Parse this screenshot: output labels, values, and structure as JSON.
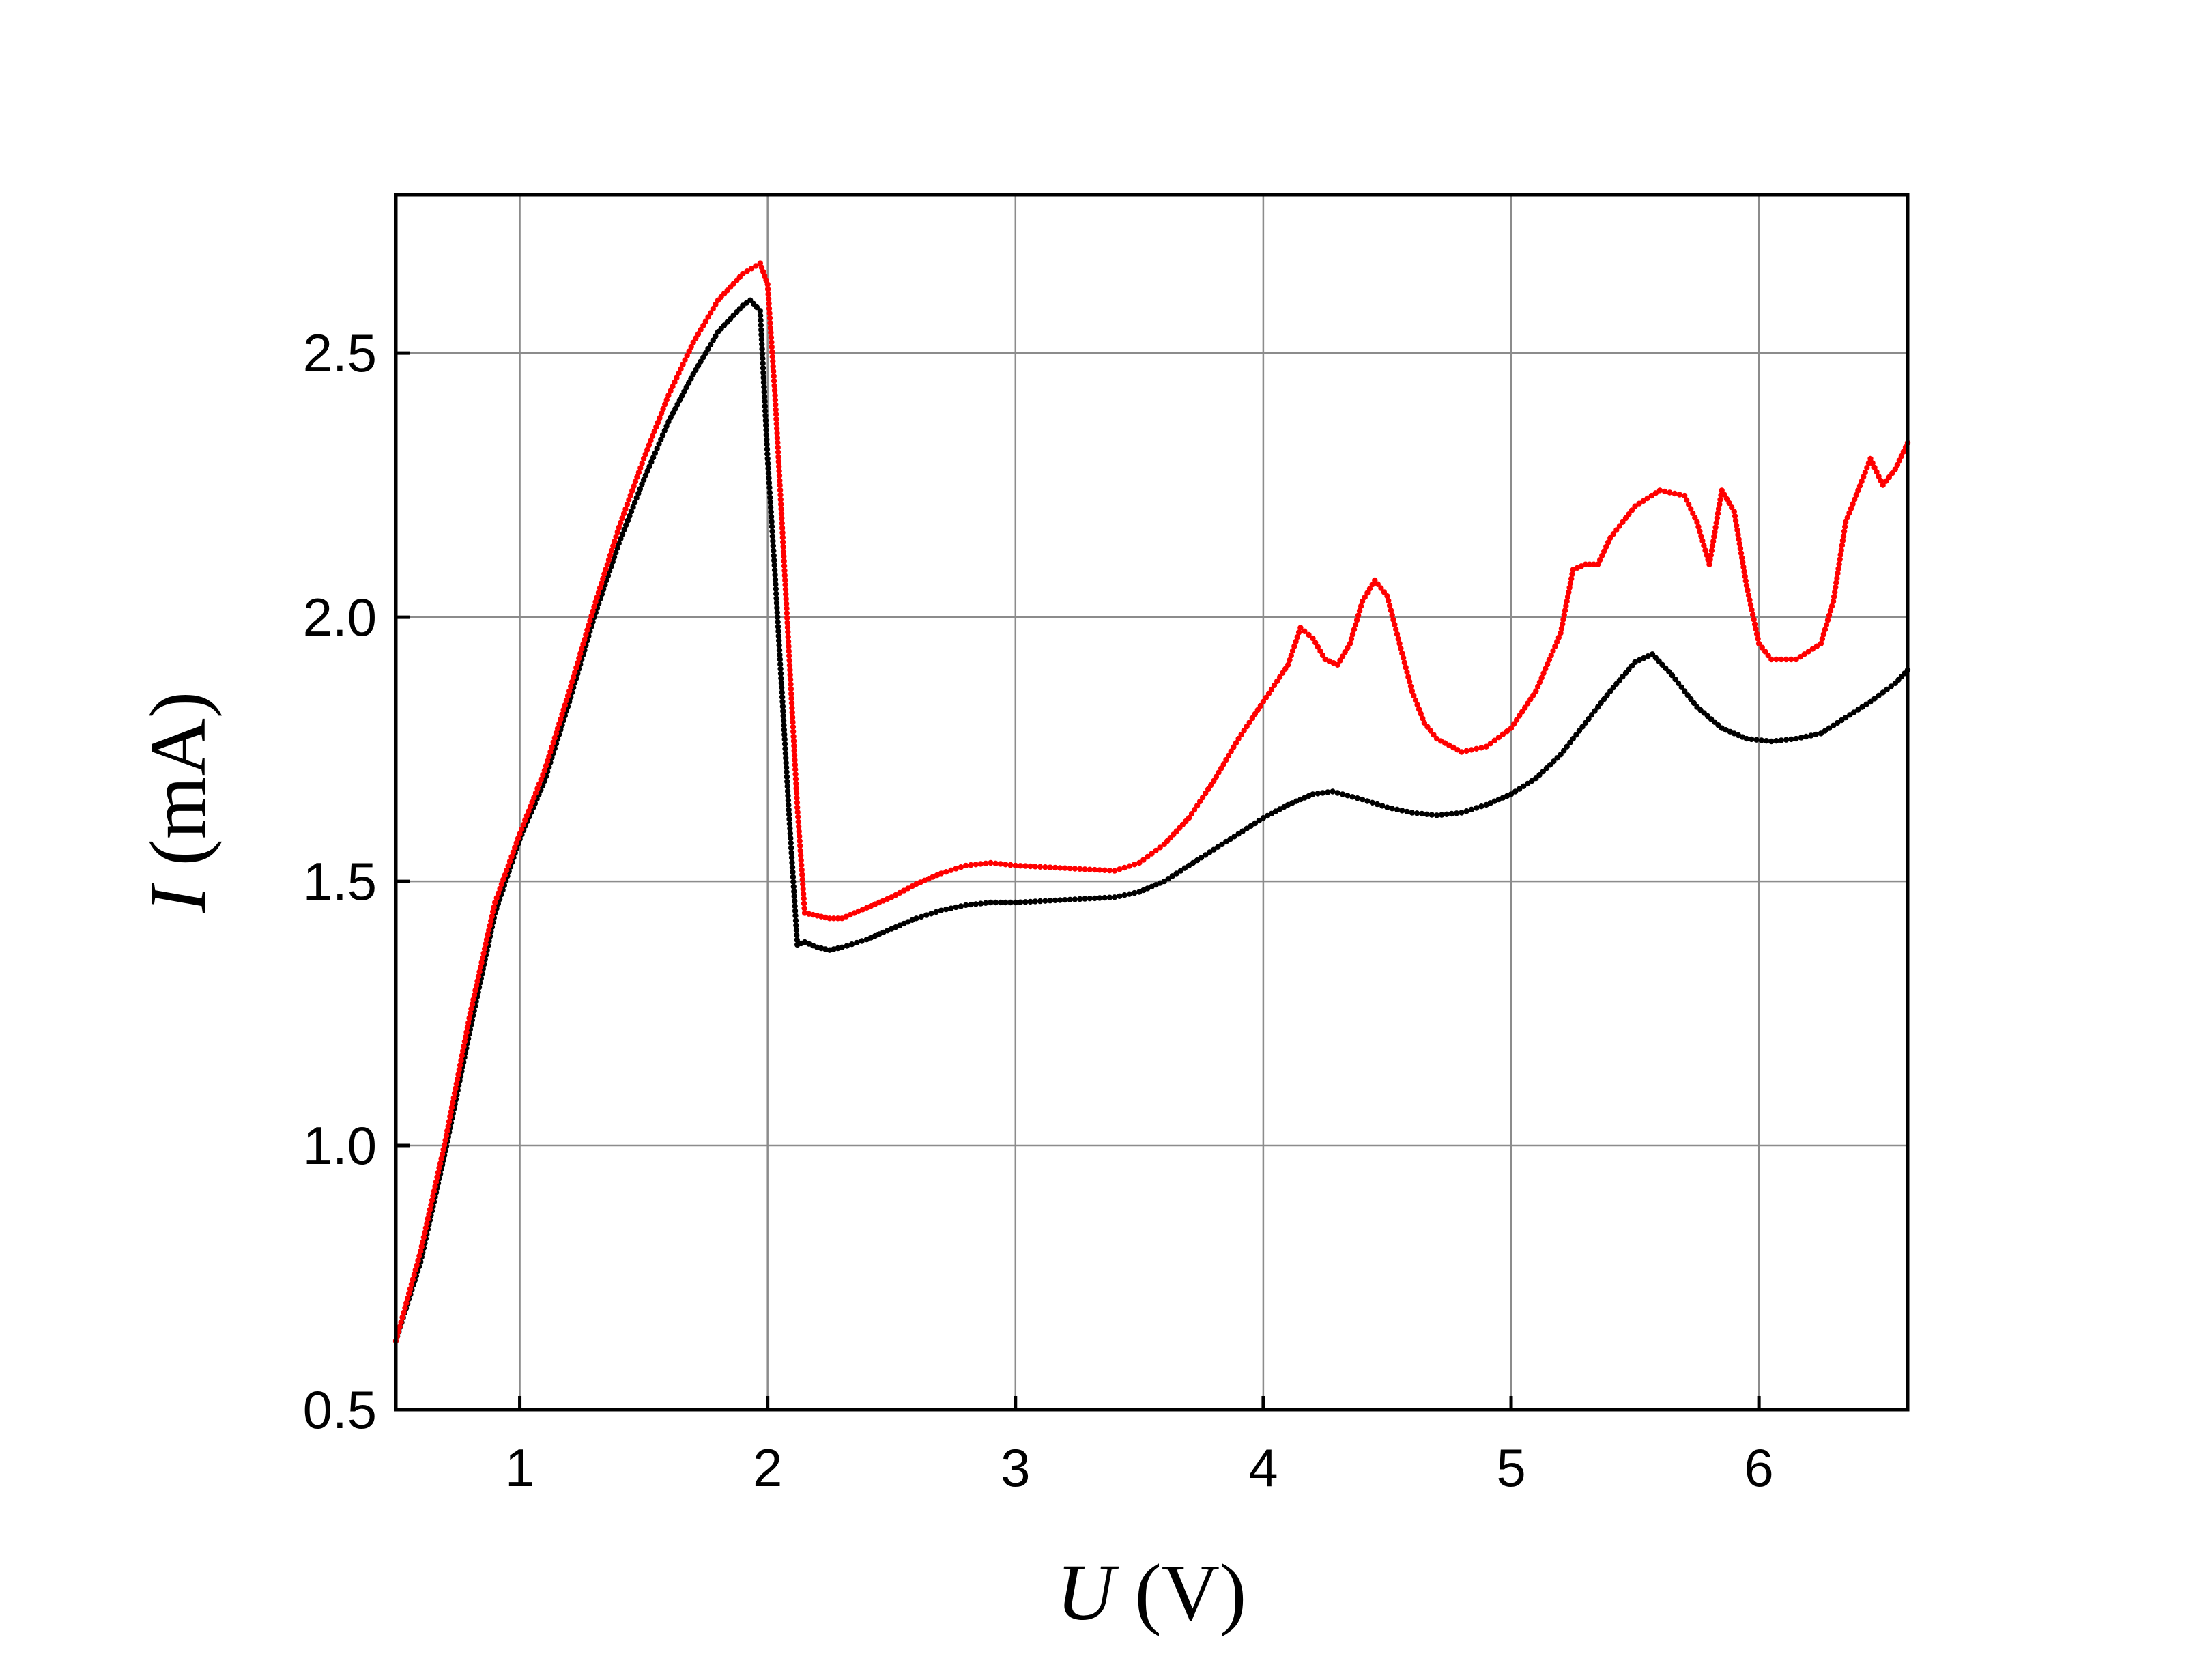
{
  "chart_data": {
    "type": "scatter",
    "xlabel_var": "U",
    "xlabel_unit": " (V)",
    "ylabel_var": "I",
    "ylabel_unit": " (mA)",
    "xlim": [
      0.5,
      6.6
    ],
    "ylim": [
      0.5,
      2.8
    ],
    "x_ticks": [
      1,
      2,
      3,
      4,
      5,
      6
    ],
    "x_tick_labels": [
      "1",
      "2",
      "3",
      "4",
      "5",
      "6"
    ],
    "y_ticks": [
      0.5,
      1.0,
      1.5,
      2.0,
      2.5
    ],
    "y_tick_labels": [
      "0.5",
      "1.0",
      "1.5",
      "2.0",
      "2.5"
    ],
    "grid": true,
    "series": [
      {
        "color": "#000000",
        "points": [
          [
            0.5,
            0.63
          ],
          [
            0.6,
            0.78
          ],
          [
            0.7,
            0.99
          ],
          [
            0.8,
            1.22
          ],
          [
            0.9,
            1.44
          ],
          [
            1.0,
            1.58
          ],
          [
            1.1,
            1.69
          ],
          [
            1.2,
            1.84
          ],
          [
            1.3,
            2.0
          ],
          [
            1.4,
            2.14
          ],
          [
            1.5,
            2.26
          ],
          [
            1.6,
            2.37
          ],
          [
            1.7,
            2.46
          ],
          [
            1.8,
            2.54
          ],
          [
            1.9,
            2.59
          ],
          [
            1.93,
            2.6
          ],
          [
            1.97,
            2.58
          ],
          [
            2.0,
            2.3
          ],
          [
            2.03,
            2.08
          ],
          [
            2.06,
            1.84
          ],
          [
            2.09,
            1.6
          ],
          [
            2.12,
            1.38
          ],
          [
            2.15,
            1.385
          ],
          [
            2.2,
            1.375
          ],
          [
            2.25,
            1.37
          ],
          [
            2.3,
            1.375
          ],
          [
            2.4,
            1.39
          ],
          [
            2.5,
            1.41
          ],
          [
            2.6,
            1.43
          ],
          [
            2.7,
            1.445
          ],
          [
            2.8,
            1.455
          ],
          [
            2.9,
            1.46
          ],
          [
            3.0,
            1.46
          ],
          [
            3.2,
            1.465
          ],
          [
            3.4,
            1.47
          ],
          [
            3.5,
            1.48
          ],
          [
            3.6,
            1.5
          ],
          [
            3.7,
            1.53
          ],
          [
            3.8,
            1.56
          ],
          [
            3.9,
            1.59
          ],
          [
            4.0,
            1.62
          ],
          [
            4.1,
            1.645
          ],
          [
            4.2,
            1.665
          ],
          [
            4.28,
            1.67
          ],
          [
            4.4,
            1.655
          ],
          [
            4.5,
            1.64
          ],
          [
            4.6,
            1.63
          ],
          [
            4.7,
            1.625
          ],
          [
            4.8,
            1.63
          ],
          [
            4.9,
            1.645
          ],
          [
            5.0,
            1.665
          ],
          [
            5.1,
            1.695
          ],
          [
            5.2,
            1.74
          ],
          [
            5.3,
            1.8
          ],
          [
            5.4,
            1.86
          ],
          [
            5.5,
            1.915
          ],
          [
            5.57,
            1.93
          ],
          [
            5.65,
            1.89
          ],
          [
            5.75,
            1.83
          ],
          [
            5.85,
            1.79
          ],
          [
            5.95,
            1.77
          ],
          [
            6.05,
            1.765
          ],
          [
            6.15,
            1.77
          ],
          [
            6.25,
            1.78
          ],
          [
            6.35,
            1.81
          ],
          [
            6.45,
            1.84
          ],
          [
            6.55,
            1.875
          ],
          [
            6.6,
            1.9
          ]
        ]
      },
      {
        "color": "#ff0000",
        "points": [
          [
            0.5,
            0.63
          ],
          [
            0.6,
            0.8
          ],
          [
            0.7,
            1.01
          ],
          [
            0.8,
            1.25
          ],
          [
            0.9,
            1.46
          ],
          [
            1.0,
            1.59
          ],
          [
            1.1,
            1.71
          ],
          [
            1.2,
            1.86
          ],
          [
            1.3,
            2.02
          ],
          [
            1.4,
            2.17
          ],
          [
            1.5,
            2.3
          ],
          [
            1.6,
            2.42
          ],
          [
            1.7,
            2.52
          ],
          [
            1.8,
            2.6
          ],
          [
            1.9,
            2.65
          ],
          [
            1.97,
            2.67
          ],
          [
            2.0,
            2.63
          ],
          [
            2.03,
            2.42
          ],
          [
            2.06,
            2.16
          ],
          [
            2.09,
            1.9
          ],
          [
            2.12,
            1.64
          ],
          [
            2.15,
            1.44
          ],
          [
            2.2,
            1.435
          ],
          [
            2.25,
            1.43
          ],
          [
            2.3,
            1.43
          ],
          [
            2.4,
            1.45
          ],
          [
            2.5,
            1.47
          ],
          [
            2.6,
            1.495
          ],
          [
            2.7,
            1.515
          ],
          [
            2.8,
            1.53
          ],
          [
            2.9,
            1.535
          ],
          [
            3.0,
            1.53
          ],
          [
            3.2,
            1.525
          ],
          [
            3.4,
            1.52
          ],
          [
            3.5,
            1.535
          ],
          [
            3.6,
            1.57
          ],
          [
            3.7,
            1.62
          ],
          [
            3.8,
            1.69
          ],
          [
            3.9,
            1.77
          ],
          [
            4.0,
            1.84
          ],
          [
            4.1,
            1.91
          ],
          [
            4.15,
            1.98
          ],
          [
            4.2,
            1.96
          ],
          [
            4.25,
            1.92
          ],
          [
            4.3,
            1.91
          ],
          [
            4.35,
            1.95
          ],
          [
            4.4,
            2.03
          ],
          [
            4.45,
            2.07
          ],
          [
            4.5,
            2.04
          ],
          [
            4.55,
            1.95
          ],
          [
            4.6,
            1.86
          ],
          [
            4.65,
            1.8
          ],
          [
            4.7,
            1.77
          ],
          [
            4.8,
            1.745
          ],
          [
            4.9,
            1.755
          ],
          [
            5.0,
            1.79
          ],
          [
            5.1,
            1.86
          ],
          [
            5.2,
            1.97
          ],
          [
            5.25,
            2.09
          ],
          [
            5.3,
            2.1
          ],
          [
            5.35,
            2.1
          ],
          [
            5.4,
            2.15
          ],
          [
            5.5,
            2.21
          ],
          [
            5.6,
            2.24
          ],
          [
            5.7,
            2.23
          ],
          [
            5.75,
            2.18
          ],
          [
            5.8,
            2.1
          ],
          [
            5.85,
            2.24
          ],
          [
            5.9,
            2.2
          ],
          [
            5.95,
            2.06
          ],
          [
            6.0,
            1.95
          ],
          [
            6.05,
            1.92
          ],
          [
            6.15,
            1.92
          ],
          [
            6.25,
            1.95
          ],
          [
            6.3,
            2.03
          ],
          [
            6.35,
            2.18
          ],
          [
            6.45,
            2.3
          ],
          [
            6.5,
            2.25
          ],
          [
            6.55,
            2.28
          ],
          [
            6.6,
            2.33
          ]
        ]
      }
    ]
  }
}
